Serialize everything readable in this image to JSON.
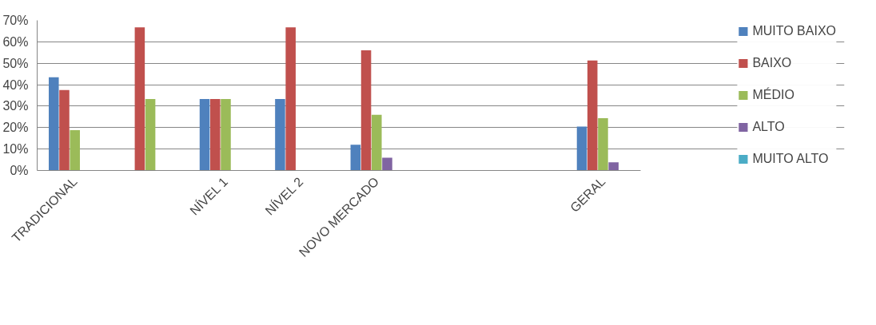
{
  "chart_data": {
    "type": "bar",
    "categories": [
      "TRADICIONAL",
      null,
      "NÍVEL 1",
      "NÍVEL 2",
      "NOVO MERCADO",
      null,
      null,
      "GERAL"
    ],
    "series": [
      {
        "name": "MUITO BAIXO",
        "color": "#4f81bd",
        "values": [
          43.5,
          0,
          33.3,
          33.3,
          12,
          null,
          null,
          20.5
        ]
      },
      {
        "name": "BAIXO",
        "color": "#c0504d",
        "values": [
          37.5,
          66.7,
          33.3,
          66.7,
          56,
          null,
          null,
          51.3
        ]
      },
      {
        "name": "MÉDIO",
        "color": "#9bbb59",
        "values": [
          18.8,
          33.3,
          33.3,
          0,
          26,
          null,
          null,
          24.4
        ]
      },
      {
        "name": "ALTO",
        "color": "#8064a2",
        "values": [
          0,
          0,
          0,
          0,
          6,
          null,
          null,
          3.8
        ]
      },
      {
        "name": "MUITO ALTO",
        "color": "#4bacc6",
        "values": [
          0,
          0,
          0,
          0,
          0,
          null,
          null,
          0
        ]
      }
    ],
    "ylim": [
      0,
      70
    ],
    "yticks": [
      {
        "value": 0,
        "label": "0%"
      },
      {
        "value": 10,
        "label": "10%"
      },
      {
        "value": 20,
        "label": "20%"
      },
      {
        "value": 30,
        "label": "30%"
      },
      {
        "value": 40,
        "label": "40%"
      },
      {
        "value": 50,
        "label": "50%"
      },
      {
        "value": 60,
        "label": "60%"
      },
      {
        "value": 70,
        "label": "70%"
      }
    ],
    "grid": "y",
    "legend": "right"
  }
}
